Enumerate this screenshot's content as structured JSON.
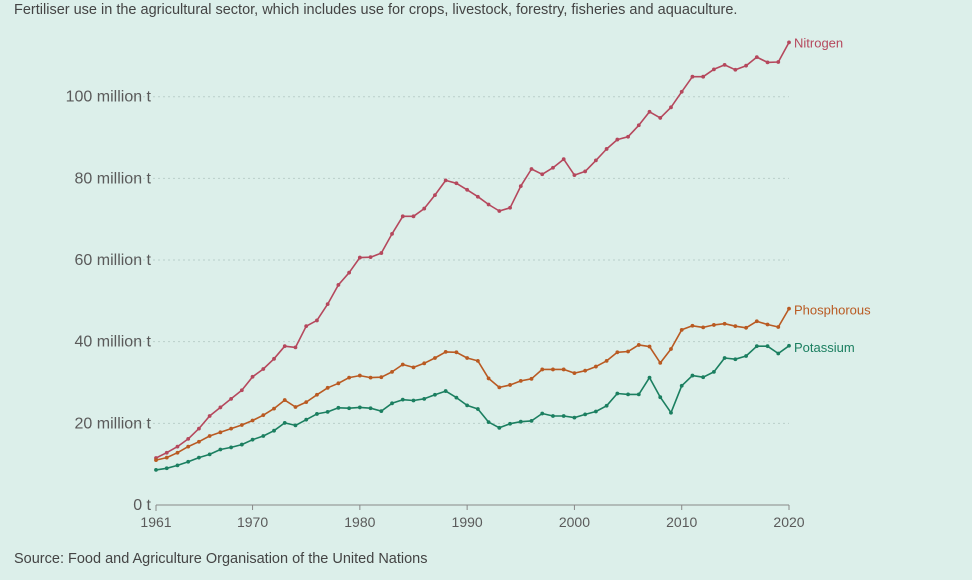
{
  "subtitle": "Fertiliser use in the agricultural sector, which includes use for crops, livestock, forestry, fisheries and aquaculture.",
  "source": "Source: Food and Agriculture Organisation of the United Nations",
  "chart_data": {
    "type": "line",
    "title": "",
    "xlabel": "",
    "ylabel": "",
    "xlim": [
      1961,
      2020
    ],
    "ylim": [
      0,
      112
    ],
    "y_ticks": [
      0,
      20,
      40,
      60,
      80,
      100
    ],
    "y_tick_labels": [
      "0 t",
      "20 million t",
      "40 million t",
      "60 million t",
      "80 million t",
      "100 million t"
    ],
    "x_ticks": [
      1961,
      1970,
      1980,
      1990,
      2000,
      2010,
      2020
    ],
    "x_tick_labels": [
      "1961",
      "1970",
      "1980",
      "1990",
      "2000",
      "2010",
      "2020"
    ],
    "grid": true,
    "x": [
      1961,
      1962,
      1963,
      1964,
      1965,
      1966,
      1967,
      1968,
      1969,
      1970,
      1971,
      1972,
      1973,
      1974,
      1975,
      1976,
      1977,
      1978,
      1979,
      1980,
      1981,
      1982,
      1983,
      1984,
      1985,
      1986,
      1987,
      1988,
      1989,
      1990,
      1991,
      1992,
      1993,
      1994,
      1995,
      1996,
      1997,
      1998,
      1999,
      2000,
      2001,
      2002,
      2003,
      2004,
      2005,
      2006,
      2007,
      2008,
      2009,
      2010,
      2011,
      2012,
      2013,
      2014,
      2015,
      2016,
      2017,
      2018,
      2019,
      2020
    ],
    "series": [
      {
        "name": "Nitrogen",
        "color": "#b5485d",
        "values": [
          11.5,
          12.8,
          14.3,
          16.2,
          18.7,
          21.8,
          23.9,
          26.0,
          28.1,
          31.4,
          33.3,
          35.8,
          38.9,
          38.6,
          43.8,
          45.2,
          49.2,
          53.9,
          56.9,
          60.6,
          60.7,
          61.7,
          66.4,
          70.7,
          70.7,
          72.6,
          75.9,
          79.5,
          78.8,
          77.2,
          75.5,
          73.6,
          72.0,
          72.8,
          78.1,
          82.3,
          81.0,
          82.6,
          84.7,
          80.8,
          81.7,
          84.4,
          87.2,
          89.5,
          90.2,
          93.0,
          96.3,
          94.8,
          97.4,
          101.2,
          104.9,
          104.9,
          106.7,
          107.8,
          106.6,
          107.6,
          109.7,
          108.4,
          108.5,
          113.3
        ]
      },
      {
        "name": "Phosphorous",
        "color": "#b95a22",
        "values": [
          11.0,
          11.6,
          12.8,
          14.3,
          15.5,
          16.9,
          17.8,
          18.7,
          19.6,
          20.7,
          22.0,
          23.6,
          25.7,
          24.0,
          25.2,
          27.0,
          28.7,
          29.8,
          31.2,
          31.7,
          31.2,
          31.3,
          32.6,
          34.4,
          33.7,
          34.7,
          36.0,
          37.5,
          37.4,
          36.0,
          35.3,
          31.0,
          28.8,
          29.4,
          30.4,
          30.9,
          33.2,
          33.2,
          33.2,
          32.3,
          32.9,
          33.9,
          35.3,
          37.4,
          37.6,
          39.2,
          38.8,
          34.8,
          38.2,
          42.9,
          43.9,
          43.5,
          44.1,
          44.4,
          43.8,
          43.4,
          45.0,
          44.2,
          43.6,
          48.1
        ]
      },
      {
        "name": "Potassium",
        "color": "#1b7f60",
        "values": [
          8.6,
          9.0,
          9.7,
          10.6,
          11.6,
          12.4,
          13.6,
          14.1,
          14.8,
          16.0,
          16.9,
          18.2,
          20.1,
          19.5,
          20.9,
          22.3,
          22.8,
          23.8,
          23.7,
          23.9,
          23.7,
          23.0,
          24.9,
          25.8,
          25.6,
          26.0,
          27.0,
          27.9,
          26.3,
          24.4,
          23.5,
          20.3,
          18.9,
          19.9,
          20.4,
          20.6,
          22.4,
          21.8,
          21.8,
          21.4,
          22.2,
          22.9,
          24.3,
          27.3,
          27.1,
          27.1,
          31.2,
          26.4,
          22.6,
          29.2,
          31.7,
          31.3,
          32.6,
          36.0,
          35.7,
          36.5,
          38.9,
          38.9,
          37.1,
          39.0
        ]
      }
    ]
  }
}
